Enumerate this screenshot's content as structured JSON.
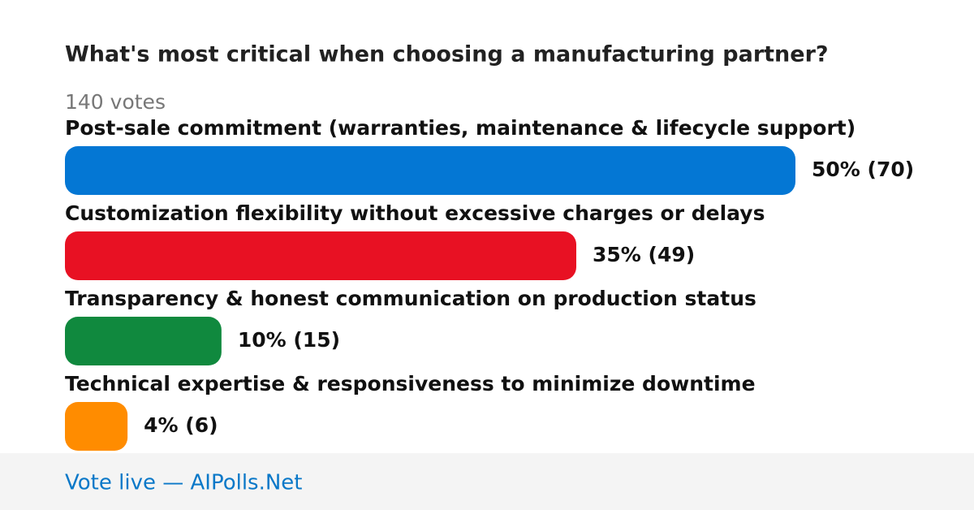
{
  "chart_data": {
    "type": "bar",
    "orientation": "horizontal",
    "title": "What's most critical when choosing a manufacturing partner?",
    "subtitle": "140 votes",
    "categories": [
      "Post-sale commitment (warranties, maintenance & lifecycle support)",
      "Customization flexibility without excessive charges or delays",
      "Transparency & honest communication on production status",
      "Technical expertise & responsiveness to minimize downtime"
    ],
    "values": [
      70,
      49,
      15,
      6
    ],
    "value_labels": [
      "50% (70)",
      "35% (49)",
      "10% (15)",
      "4% (6)"
    ],
    "colors": [
      "#0477d4",
      "#e81123",
      "#10893e",
      "#ff8c00"
    ],
    "footer": "Vote live — AIPolls.Net"
  }
}
